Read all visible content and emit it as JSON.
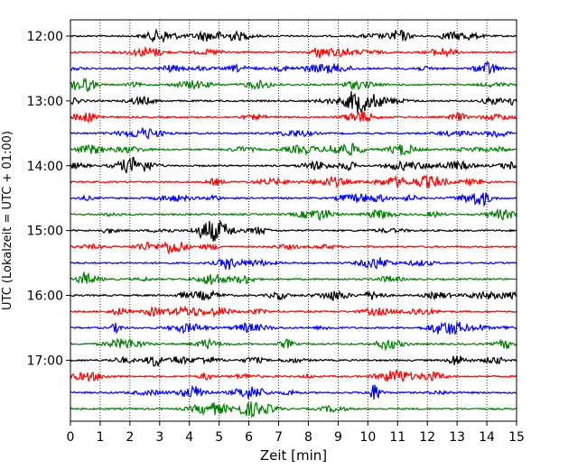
{
  "chart_data": {
    "type": "line",
    "title": "",
    "xlabel": "Zeit  [min]",
    "ylabel": "UTC (Lokalzeit = UTC + 01:00)",
    "xlim": [
      0,
      15
    ],
    "x_ticks": [
      "0",
      "1",
      "2",
      "3",
      "4",
      "5",
      "6",
      "7",
      "8",
      "9",
      "10",
      "11",
      "12",
      "13",
      "14",
      "15"
    ],
    "y_ticks": [
      "12:00",
      "13:00",
      "14:00",
      "15:00",
      "16:00",
      "17:00"
    ],
    "row_start": "12:00",
    "row_interval_minutes": 15,
    "row_count": 24,
    "row_colors": [
      "#000000",
      "#ff0000",
      "#0000ff",
      "#008000"
    ],
    "grid": "vertical dotted lines at each minute",
    "legend": "none"
  }
}
